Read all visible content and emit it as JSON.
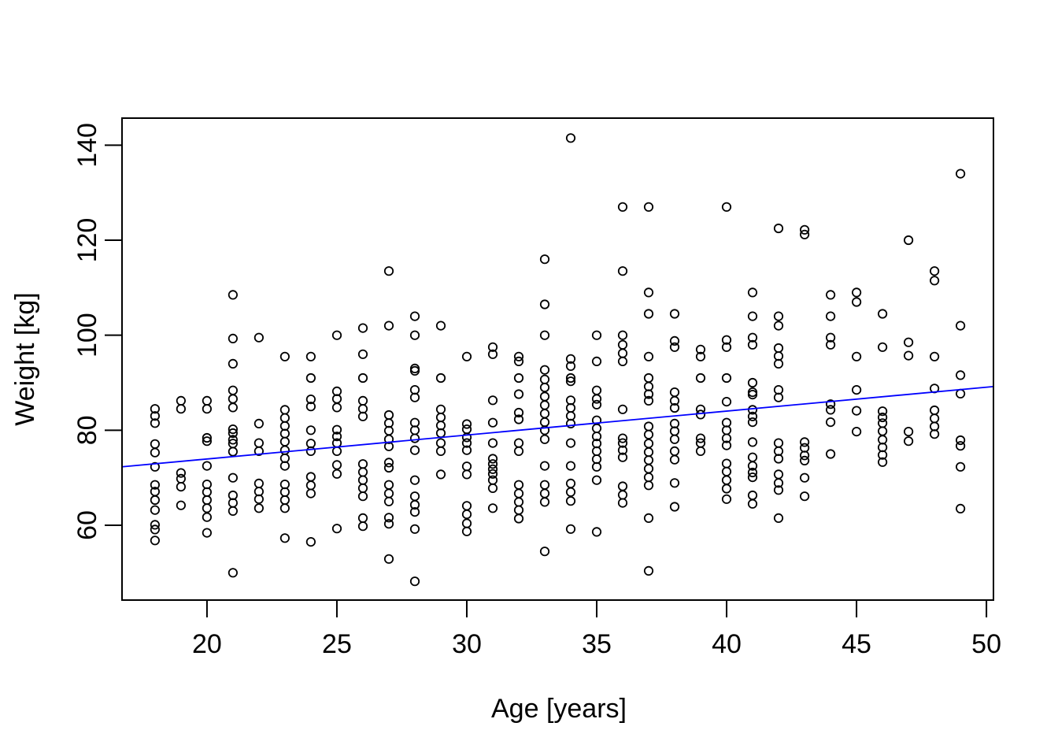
{
  "chart_data": {
    "type": "scatter",
    "title": "",
    "xlabel": "Age [years]",
    "ylabel": "Weight [kg]",
    "x_ticks": [
      20,
      25,
      30,
      35,
      40,
      45,
      50
    ],
    "y_ticks": [
      60,
      80,
      100,
      120,
      140
    ],
    "xlim": [
      16.73,
      50.27
    ],
    "ylim": [
      44.25,
      145.7
    ],
    "grid": false,
    "legend": null,
    "background": "#ffffff",
    "axis_color": "#000000",
    "point_style": {
      "shape": "open-circle",
      "color": "#000000",
      "radius_px": 5.2
    },
    "fit_line": {
      "color": "#0000ff",
      "x1": 16.73,
      "y1": 72.3,
      "x2": 50.27,
      "y2": 89.2,
      "description": "linear fit: weight ~ 63.9 + 0.50 * age"
    },
    "points": [
      [
        18,
        84.5
      ],
      [
        18,
        83
      ],
      [
        18,
        81.5
      ],
      [
        18,
        77.1
      ],
      [
        18,
        75.3
      ],
      [
        18,
        72.3
      ],
      [
        18,
        68.5
      ],
      [
        18,
        67.1
      ],
      [
        18,
        65.3
      ],
      [
        18,
        63.2
      ],
      [
        18,
        60.1
      ],
      [
        18,
        59.1
      ],
      [
        18,
        56.8
      ],
      [
        19,
        86.2
      ],
      [
        19,
        84.5
      ],
      [
        19,
        71
      ],
      [
        19,
        69.8
      ],
      [
        19,
        68.1
      ],
      [
        19,
        64.2
      ],
      [
        20,
        86.2
      ],
      [
        20,
        84.5
      ],
      [
        20,
        78.4
      ],
      [
        20,
        77.7
      ],
      [
        20,
        72.5
      ],
      [
        20,
        68.6
      ],
      [
        20,
        67
      ],
      [
        20,
        65.3
      ],
      [
        20,
        63.6
      ],
      [
        20,
        61.7
      ],
      [
        20,
        58.4
      ],
      [
        21,
        108.5
      ],
      [
        21,
        99.3
      ],
      [
        21,
        94
      ],
      [
        21,
        88.4
      ],
      [
        21,
        86.6
      ],
      [
        21,
        84.8
      ],
      [
        21,
        80.2
      ],
      [
        21,
        79.4
      ],
      [
        21,
        78
      ],
      [
        21,
        77.2
      ],
      [
        21,
        75.5
      ],
      [
        21,
        70
      ],
      [
        21,
        66.3
      ],
      [
        21,
        64.7
      ],
      [
        21,
        63
      ],
      [
        21,
        50
      ],
      [
        22,
        99.5
      ],
      [
        22,
        81.4
      ],
      [
        22,
        77.3
      ],
      [
        22,
        75.6
      ],
      [
        22,
        68.8
      ],
      [
        22,
        67.1
      ],
      [
        22,
        65.5
      ],
      [
        22,
        63.6
      ],
      [
        23,
        95.5
      ],
      [
        23,
        84.3
      ],
      [
        23,
        82.6
      ],
      [
        23,
        80.9
      ],
      [
        23,
        79.3
      ],
      [
        23,
        77.6
      ],
      [
        23,
        75.8
      ],
      [
        23,
        74.1
      ],
      [
        23,
        72.5
      ],
      [
        23,
        68.6
      ],
      [
        23,
        67
      ],
      [
        23,
        65.3
      ],
      [
        23,
        63.6
      ],
      [
        23,
        57.3
      ],
      [
        24,
        95.5
      ],
      [
        24,
        91
      ],
      [
        24,
        86.5
      ],
      [
        24,
        85
      ],
      [
        24,
        80
      ],
      [
        24,
        77.2
      ],
      [
        24,
        75.6
      ],
      [
        24,
        70.2
      ],
      [
        24,
        68.4
      ],
      [
        24,
        66.7
      ],
      [
        24,
        56.5
      ],
      [
        25,
        100
      ],
      [
        25,
        88.2
      ],
      [
        25,
        86.6
      ],
      [
        25,
        84.8
      ],
      [
        25,
        80.1
      ],
      [
        25,
        78.7
      ],
      [
        25,
        77.3
      ],
      [
        25,
        75.6
      ],
      [
        25,
        72.7
      ],
      [
        25,
        70.8
      ],
      [
        25,
        59.3
      ],
      [
        26,
        101.5
      ],
      [
        26,
        96
      ],
      [
        26,
        91
      ],
      [
        26,
        86.2
      ],
      [
        26,
        84.5
      ],
      [
        26,
        82.9
      ],
      [
        26,
        72.9
      ],
      [
        26,
        71.2
      ],
      [
        26,
        69.5
      ],
      [
        26,
        67.8
      ],
      [
        26,
        66.1
      ],
      [
        26,
        61.5
      ],
      [
        26,
        59.8
      ],
      [
        27,
        113.5
      ],
      [
        27,
        102
      ],
      [
        27,
        83.2
      ],
      [
        27,
        81.5
      ],
      [
        27,
        79.9
      ],
      [
        27,
        78.1
      ],
      [
        27,
        76.6
      ],
      [
        27,
        73.2
      ],
      [
        27,
        72.1
      ],
      [
        27,
        68.5
      ],
      [
        27,
        66.7
      ],
      [
        27,
        65
      ],
      [
        27,
        61.6
      ],
      [
        27,
        60.3
      ],
      [
        27,
        52.9
      ],
      [
        28,
        104
      ],
      [
        28,
        100
      ],
      [
        28,
        93
      ],
      [
        28,
        92.5
      ],
      [
        28,
        88.5
      ],
      [
        28,
        86.9
      ],
      [
        28,
        81.6
      ],
      [
        28,
        80
      ],
      [
        28,
        78.3
      ],
      [
        28,
        75.8
      ],
      [
        28,
        69.5
      ],
      [
        28,
        66.1
      ],
      [
        28,
        64.3
      ],
      [
        28,
        62.8
      ],
      [
        28,
        59.2
      ],
      [
        28,
        48.2
      ],
      [
        29,
        102
      ],
      [
        29,
        91
      ],
      [
        29,
        84.4
      ],
      [
        29,
        82.7
      ],
      [
        29,
        81
      ],
      [
        29,
        79.4
      ],
      [
        29,
        77.3
      ],
      [
        29,
        75.6
      ],
      [
        29,
        70.7
      ],
      [
        30,
        95.5
      ],
      [
        30,
        81.3
      ],
      [
        30,
        80.2
      ],
      [
        30,
        78.5
      ],
      [
        30,
        77.3
      ],
      [
        30,
        75.8
      ],
      [
        30,
        72.4
      ],
      [
        30,
        70.7
      ],
      [
        30,
        64.1
      ],
      [
        30,
        62.3
      ],
      [
        30,
        60.4
      ],
      [
        30,
        58.7
      ],
      [
        31,
        97.5
      ],
      [
        31,
        96
      ],
      [
        31,
        86.3
      ],
      [
        31,
        81.6
      ],
      [
        31,
        77.3
      ],
      [
        31,
        74
      ],
      [
        31,
        72.9
      ],
      [
        31,
        71.8
      ],
      [
        31,
        70.8
      ],
      [
        31,
        69.5
      ],
      [
        31,
        67.8
      ],
      [
        31,
        63.6
      ],
      [
        32,
        95.5
      ],
      [
        32,
        94.5
      ],
      [
        32,
        91
      ],
      [
        32,
        87.6
      ],
      [
        32,
        83.7
      ],
      [
        32,
        82.3
      ],
      [
        32,
        77.3
      ],
      [
        32,
        75.6
      ],
      [
        32,
        68.5
      ],
      [
        32,
        66.7
      ],
      [
        32,
        64.9
      ],
      [
        32,
        63.2
      ],
      [
        32,
        61.4
      ],
      [
        33,
        116
      ],
      [
        33,
        106.5
      ],
      [
        33,
        100
      ],
      [
        33,
        92.7
      ],
      [
        33,
        90.7
      ],
      [
        33,
        89
      ],
      [
        33,
        87.1
      ],
      [
        33,
        85.3
      ],
      [
        33,
        83.5
      ],
      [
        33,
        81.7
      ],
      [
        33,
        80
      ],
      [
        33,
        78.1
      ],
      [
        33,
        72.5
      ],
      [
        33,
        68.5
      ],
      [
        33,
        66.7
      ],
      [
        33,
        64.9
      ],
      [
        33,
        54.5
      ],
      [
        34,
        141.5
      ],
      [
        34,
        95
      ],
      [
        34,
        93.5
      ],
      [
        34,
        91
      ],
      [
        34,
        90.3
      ],
      [
        34,
        86.3
      ],
      [
        34,
        84.7
      ],
      [
        34,
        83
      ],
      [
        34,
        81.4
      ],
      [
        34,
        77.3
      ],
      [
        34,
        72.5
      ],
      [
        34,
        68.8
      ],
      [
        34,
        67
      ],
      [
        34,
        65.1
      ],
      [
        34,
        59.2
      ],
      [
        35,
        100
      ],
      [
        35,
        94.5
      ],
      [
        35,
        88.4
      ],
      [
        35,
        86.6
      ],
      [
        35,
        85.4
      ],
      [
        35,
        82.1
      ],
      [
        35,
        80.4
      ],
      [
        35,
        78.7
      ],
      [
        35,
        77.2
      ],
      [
        35,
        75.6
      ],
      [
        35,
        73.9
      ],
      [
        35,
        72.3
      ],
      [
        35,
        69.5
      ],
      [
        35,
        58.6
      ],
      [
        36,
        127
      ],
      [
        36,
        113.5
      ],
      [
        36,
        100
      ],
      [
        36,
        98
      ],
      [
        36,
        96.2
      ],
      [
        36,
        94.5
      ],
      [
        36,
        84.4
      ],
      [
        36,
        78.3
      ],
      [
        36,
        77.3
      ],
      [
        36,
        75.8
      ],
      [
        36,
        74.3
      ],
      [
        36,
        68.2
      ],
      [
        36,
        66.4
      ],
      [
        36,
        64.7
      ],
      [
        37,
        127
      ],
      [
        37,
        109
      ],
      [
        37,
        104.5
      ],
      [
        37,
        95.5
      ],
      [
        37,
        91
      ],
      [
        37,
        89.2
      ],
      [
        37,
        87.6
      ],
      [
        37,
        86.2
      ],
      [
        37,
        80.8
      ],
      [
        37,
        79.1
      ],
      [
        37,
        77.2
      ],
      [
        37,
        75.4
      ],
      [
        37,
        73.7
      ],
      [
        37,
        71.9
      ],
      [
        37,
        70.1
      ],
      [
        37,
        68.4
      ],
      [
        37,
        61.5
      ],
      [
        37,
        50.4
      ],
      [
        38,
        104.5
      ],
      [
        38,
        98.8
      ],
      [
        38,
        97.5
      ],
      [
        38,
        88
      ],
      [
        38,
        86.2
      ],
      [
        38,
        84.7
      ],
      [
        38,
        81.4
      ],
      [
        38,
        79.8
      ],
      [
        38,
        78.1
      ],
      [
        38,
        75.6
      ],
      [
        38,
        73.8
      ],
      [
        38,
        68.9
      ],
      [
        38,
        63.9
      ],
      [
        39,
        97
      ],
      [
        39,
        95.5
      ],
      [
        39,
        91
      ],
      [
        39,
        84.4
      ],
      [
        39,
        83.3
      ],
      [
        39,
        78.3
      ],
      [
        39,
        77.3
      ],
      [
        39,
        75.6
      ],
      [
        40,
        127
      ],
      [
        40,
        99
      ],
      [
        40,
        97.5
      ],
      [
        40,
        91
      ],
      [
        40,
        86
      ],
      [
        40,
        81.6
      ],
      [
        40,
        80
      ],
      [
        40,
        78.3
      ],
      [
        40,
        76.8
      ],
      [
        40,
        73
      ],
      [
        40,
        71.3
      ],
      [
        40,
        69.5
      ],
      [
        40,
        67.7
      ],
      [
        40,
        65.5
      ],
      [
        41,
        109
      ],
      [
        41,
        104
      ],
      [
        41,
        99.5
      ],
      [
        41,
        98
      ],
      [
        41,
        90
      ],
      [
        41,
        88
      ],
      [
        41,
        87.5
      ],
      [
        41,
        84.3
      ],
      [
        41,
        82.9
      ],
      [
        41,
        81.7
      ],
      [
        41,
        77.5
      ],
      [
        41,
        74.3
      ],
      [
        41,
        72.5
      ],
      [
        41,
        71.1
      ],
      [
        41,
        70.1
      ],
      [
        41,
        66.3
      ],
      [
        41,
        64.5
      ],
      [
        42,
        122.5
      ],
      [
        42,
        104
      ],
      [
        42,
        102
      ],
      [
        42,
        97.3
      ],
      [
        42,
        95.6
      ],
      [
        42,
        94
      ],
      [
        42,
        88.5
      ],
      [
        42,
        86.9
      ],
      [
        42,
        77.3
      ],
      [
        42,
        75.6
      ],
      [
        42,
        74
      ],
      [
        42,
        70.7
      ],
      [
        42,
        68.9
      ],
      [
        42,
        67.4
      ],
      [
        42,
        61.5
      ],
      [
        43,
        122.2
      ],
      [
        43,
        121.2
      ],
      [
        43,
        77.5
      ],
      [
        43,
        76.3
      ],
      [
        43,
        74.7
      ],
      [
        43,
        73.6
      ],
      [
        43,
        70
      ],
      [
        43,
        66.1
      ],
      [
        44,
        108.5
      ],
      [
        44,
        104
      ],
      [
        44,
        99.5
      ],
      [
        44,
        98
      ],
      [
        44,
        85.5
      ],
      [
        44,
        84.3
      ],
      [
        44,
        81.7
      ],
      [
        44,
        75
      ],
      [
        45,
        109
      ],
      [
        45,
        107
      ],
      [
        45,
        95.5
      ],
      [
        45,
        88.5
      ],
      [
        45,
        84.1
      ],
      [
        45,
        79.7
      ],
      [
        46,
        104.5
      ],
      [
        46,
        97.5
      ],
      [
        46,
        84
      ],
      [
        46,
        82.7
      ],
      [
        46,
        81.5
      ],
      [
        46,
        79.8
      ],
      [
        46,
        78
      ],
      [
        46,
        76.4
      ],
      [
        46,
        74.8
      ],
      [
        46,
        73.3
      ],
      [
        47,
        120
      ],
      [
        47,
        98.5
      ],
      [
        47,
        95.7
      ],
      [
        47,
        79.7
      ],
      [
        47,
        77.7
      ],
      [
        48,
        113.5
      ],
      [
        48,
        111.5
      ],
      [
        48,
        95.5
      ],
      [
        48,
        88.8
      ],
      [
        48,
        84.2
      ],
      [
        48,
        82.5
      ],
      [
        48,
        80.8
      ],
      [
        48,
        79.2
      ],
      [
        49,
        134
      ],
      [
        49,
        102
      ],
      [
        49,
        91.6
      ],
      [
        49,
        87.7
      ],
      [
        49,
        77.9
      ],
      [
        49,
        76.7
      ],
      [
        49,
        72.3
      ],
      [
        49,
        63.5
      ]
    ]
  }
}
